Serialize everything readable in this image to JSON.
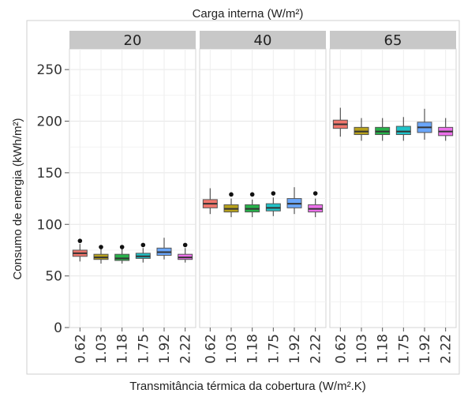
{
  "chart_data": {
    "type": "boxplot",
    "title": "Carga interna (W/m²)",
    "xlabel": "Transmitância térmica da cobertura (W/m².K)",
    "ylabel": "Consumo de energia (kWh/m²)",
    "ylim": [
      0,
      270
    ],
    "yticks": [
      "0",
      "50",
      "100",
      "150",
      "200",
      "250"
    ],
    "categories": [
      "0.62",
      "1.03",
      "1.18",
      "1.75",
      "1.92",
      "2.22"
    ],
    "colors": [
      "#f0766c",
      "#b7a11c",
      "#27b14a",
      "#1fc2c8",
      "#6aa6fa",
      "#ec70ea"
    ],
    "grid": true,
    "legend": "none",
    "panels": [
      {
        "label": "20",
        "boxes": [
          {
            "category": "0.62",
            "min": 64,
            "q1": 69,
            "median": 72,
            "q3": 75,
            "max": 81,
            "outlier": 84
          },
          {
            "category": "1.03",
            "min": 62,
            "q1": 66,
            "median": 68,
            "q3": 71,
            "max": 76,
            "outlier": 78
          },
          {
            "category": "1.18",
            "min": 62,
            "q1": 65,
            "median": 67,
            "q3": 71,
            "max": 76,
            "outlier": 78
          },
          {
            "category": "1.75",
            "min": 63,
            "q1": 67,
            "median": 69,
            "q3": 72,
            "max": 77,
            "outlier": 80
          },
          {
            "category": "1.92",
            "min": 66,
            "q1": 70,
            "median": 73,
            "q3": 77,
            "max": 87,
            "outlier": null
          },
          {
            "category": "2.22",
            "min": 63,
            "q1": 66,
            "median": 68,
            "q3": 71,
            "max": 77,
            "outlier": 80
          }
        ]
      },
      {
        "label": "40",
        "boxes": [
          {
            "category": "0.62",
            "min": 110,
            "q1": 116,
            "median": 120,
            "q3": 124,
            "max": 135,
            "outlier": null
          },
          {
            "category": "1.03",
            "min": 107,
            "q1": 112,
            "median": 115,
            "q3": 119,
            "max": 125,
            "outlier": 129
          },
          {
            "category": "1.18",
            "min": 107,
            "q1": 112,
            "median": 115,
            "q3": 119,
            "max": 124,
            "outlier": 129
          },
          {
            "category": "1.75",
            "min": 108,
            "q1": 113,
            "median": 116,
            "q3": 120,
            "max": 126,
            "outlier": 130
          },
          {
            "category": "1.92",
            "min": 110,
            "q1": 116,
            "median": 120,
            "q3": 125,
            "max": 136,
            "outlier": null
          },
          {
            "category": "2.22",
            "min": 107,
            "q1": 112,
            "median": 115,
            "q3": 119,
            "max": 125,
            "outlier": 130
          }
        ]
      },
      {
        "label": "65",
        "boxes": [
          {
            "category": "0.62",
            "min": 185,
            "q1": 193,
            "median": 197,
            "q3": 201,
            "max": 213,
            "outlier": null
          },
          {
            "category": "1.03",
            "min": 181,
            "q1": 187,
            "median": 190,
            "q3": 194,
            "max": 203,
            "outlier": null
          },
          {
            "category": "1.18",
            "min": 181,
            "q1": 187,
            "median": 190,
            "q3": 194,
            "max": 203,
            "outlier": null
          },
          {
            "category": "1.75",
            "min": 181,
            "q1": 187,
            "median": 190,
            "q3": 195,
            "max": 204,
            "outlier": null
          },
          {
            "category": "1.92",
            "min": 182,
            "q1": 189,
            "median": 194,
            "q3": 199,
            "max": 212,
            "outlier": null
          },
          {
            "category": "2.22",
            "min": 181,
            "q1": 186,
            "median": 190,
            "q3": 194,
            "max": 203,
            "outlier": null
          }
        ]
      }
    ]
  }
}
